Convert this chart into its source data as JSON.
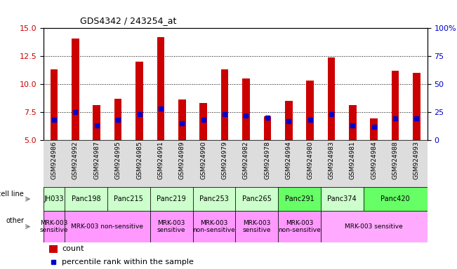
{
  "title": "GDS4342 / 243254_at",
  "samples": [
    "GSM924986",
    "GSM924992",
    "GSM924987",
    "GSM924995",
    "GSM924985",
    "GSM924991",
    "GSM924989",
    "GSM924990",
    "GSM924979",
    "GSM924982",
    "GSM924978",
    "GSM924994",
    "GSM924980",
    "GSM924983",
    "GSM924981",
    "GSM924984",
    "GSM924988",
    "GSM924993"
  ],
  "counts": [
    11.3,
    14.1,
    8.1,
    8.7,
    12.0,
    14.2,
    8.6,
    8.3,
    11.3,
    10.5,
    7.1,
    8.5,
    10.3,
    12.4,
    8.1,
    6.9,
    11.2,
    11.0
  ],
  "percentile_ranks": [
    6.8,
    7.5,
    6.3,
    6.8,
    7.3,
    7.8,
    6.5,
    6.8,
    7.3,
    7.2,
    7.0,
    6.7,
    6.8,
    7.3,
    6.3,
    6.2,
    6.9,
    6.9
  ],
  "ymin": 5.0,
  "ymax": 15.0,
  "yticks_left": [
    5,
    7.5,
    10,
    12.5,
    15
  ],
  "yticks_right": [
    0,
    25,
    50,
    75,
    100
  ],
  "cell_lines": [
    {
      "label": "JH033",
      "start": 0,
      "end": 1,
      "color": "#ccffcc"
    },
    {
      "label": "Panc198",
      "start": 1,
      "end": 3,
      "color": "#ccffcc"
    },
    {
      "label": "Panc215",
      "start": 3,
      "end": 5,
      "color": "#ccffcc"
    },
    {
      "label": "Panc219",
      "start": 5,
      "end": 7,
      "color": "#ccffcc"
    },
    {
      "label": "Panc253",
      "start": 7,
      "end": 9,
      "color": "#ccffcc"
    },
    {
      "label": "Panc265",
      "start": 9,
      "end": 11,
      "color": "#ccffcc"
    },
    {
      "label": "Panc291",
      "start": 11,
      "end": 13,
      "color": "#66ff66"
    },
    {
      "label": "Panc374",
      "start": 13,
      "end": 15,
      "color": "#ccffcc"
    },
    {
      "label": "Panc420",
      "start": 15,
      "end": 18,
      "color": "#66ff66"
    }
  ],
  "other_labels": [
    {
      "label": "MRK-003\nsensitive",
      "start": 0,
      "end": 1,
      "color": "#ff99ff"
    },
    {
      "label": "MRK-003 non-sensitive",
      "start": 1,
      "end": 5,
      "color": "#ff99ff"
    },
    {
      "label": "MRK-003\nsensitive",
      "start": 5,
      "end": 7,
      "color": "#ff99ff"
    },
    {
      "label": "MRK-003\nnon-sensitive",
      "start": 7,
      "end": 9,
      "color": "#ff99ff"
    },
    {
      "label": "MRK-003\nsensitive",
      "start": 9,
      "end": 11,
      "color": "#ff99ff"
    },
    {
      "label": "MRK-003\nnon-sensitive",
      "start": 11,
      "end": 13,
      "color": "#ff99ff"
    },
    {
      "label": "MRK-003 sensitive",
      "start": 13,
      "end": 18,
      "color": "#ffaaff"
    }
  ],
  "bar_color": "#cc0000",
  "percentile_color": "#0000cc",
  "tick_color_left": "#cc0000",
  "tick_color_right": "#0000cc",
  "bar_width": 0.35,
  "bg_xtick": "#dddddd"
}
